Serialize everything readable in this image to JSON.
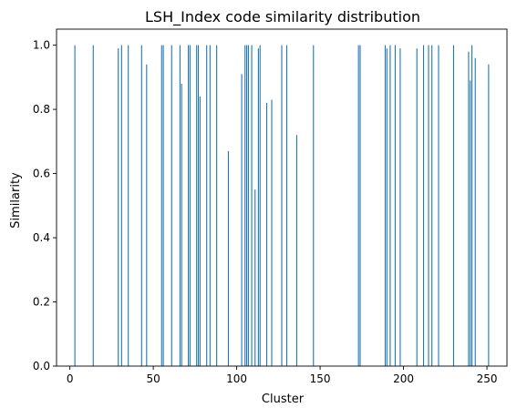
{
  "chart_data": {
    "type": "bar",
    "title": "LSH_Index code similarity distribution",
    "xlabel": "Cluster",
    "ylabel": "Similarity",
    "xlim": [
      -8,
      262
    ],
    "ylim": [
      0,
      1.05
    ],
    "xticks": [
      0,
      50,
      100,
      150,
      200,
      250
    ],
    "yticks": [
      0.0,
      0.2,
      0.4,
      0.6,
      0.8,
      1.0
    ],
    "xtick_labels": [
      "0",
      "50",
      "100",
      "150",
      "200",
      "250"
    ],
    "ytick_labels": [
      "0.0",
      "0.2",
      "0.4",
      "0.6",
      "0.8",
      "1.0"
    ],
    "grid": false,
    "bar_color": "#1f77b4",
    "x": [
      3,
      14,
      29,
      31,
      35,
      43,
      46,
      55,
      56,
      61,
      66,
      67,
      71,
      72,
      76,
      77,
      78,
      82,
      84,
      88,
      95,
      103,
      105,
      106,
      107,
      109,
      111,
      113,
      114,
      118,
      121,
      127,
      130,
      136,
      146,
      173,
      174,
      189,
      190,
      192,
      195,
      198,
      208,
      212,
      215,
      217,
      221,
      230,
      239,
      240,
      241,
      243,
      251
    ],
    "values": [
      1.0,
      1.0,
      0.99,
      1.0,
      1.0,
      1.0,
      0.94,
      1.0,
      1.0,
      1.0,
      1.0,
      0.88,
      1.0,
      1.0,
      1.0,
      1.0,
      0.84,
      1.0,
      1.0,
      1.0,
      0.67,
      0.91,
      1.0,
      1.0,
      1.0,
      1.0,
      0.55,
      0.99,
      1.0,
      0.82,
      0.83,
      1.0,
      1.0,
      0.72,
      1.0,
      1.0,
      1.0,
      1.0,
      0.99,
      1.0,
      1.0,
      0.99,
      0.99,
      1.0,
      1.0,
      1.0,
      1.0,
      1.0,
      0.98,
      0.89,
      1.0,
      0.96,
      0.94
    ]
  }
}
